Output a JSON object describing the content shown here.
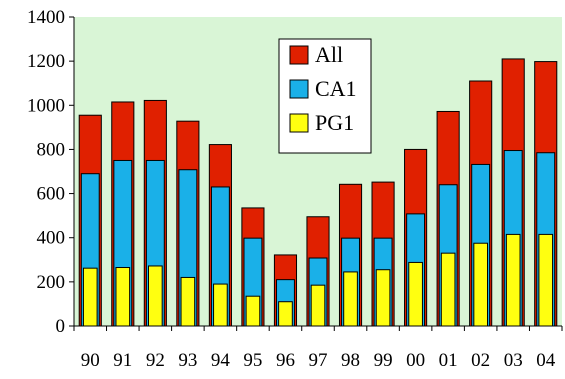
{
  "chart_data": {
    "type": "bar",
    "categories": [
      "90",
      "91",
      "92",
      "93",
      "94",
      "95",
      "96",
      "97",
      "98",
      "99",
      "00",
      "01",
      "02",
      "03",
      "04"
    ],
    "series": [
      {
        "name": "All",
        "color": "#e02000",
        "values": [
          955,
          1015,
          1022,
          928,
          822,
          535,
          322,
          495,
          642,
          652,
          800,
          972,
          1110,
          1210,
          1198
        ]
      },
      {
        "name": "CA1",
        "color": "#1ab0e8",
        "values": [
          690,
          750,
          750,
          708,
          630,
          398,
          210,
          308,
          398,
          398,
          508,
          640,
          732,
          795,
          785
        ]
      },
      {
        "name": "PG1",
        "color": "#ffff10",
        "values": [
          262,
          265,
          272,
          220,
          190,
          135,
          110,
          185,
          245,
          255,
          288,
          330,
          375,
          415,
          415
        ]
      }
    ],
    "ylim": [
      0,
      1400
    ],
    "yticks": [
      0,
      200,
      400,
      600,
      800,
      1000,
      1200,
      1400
    ],
    "grid": false,
    "legend_position": "top-center",
    "plot_background": "#d9f5d6"
  }
}
